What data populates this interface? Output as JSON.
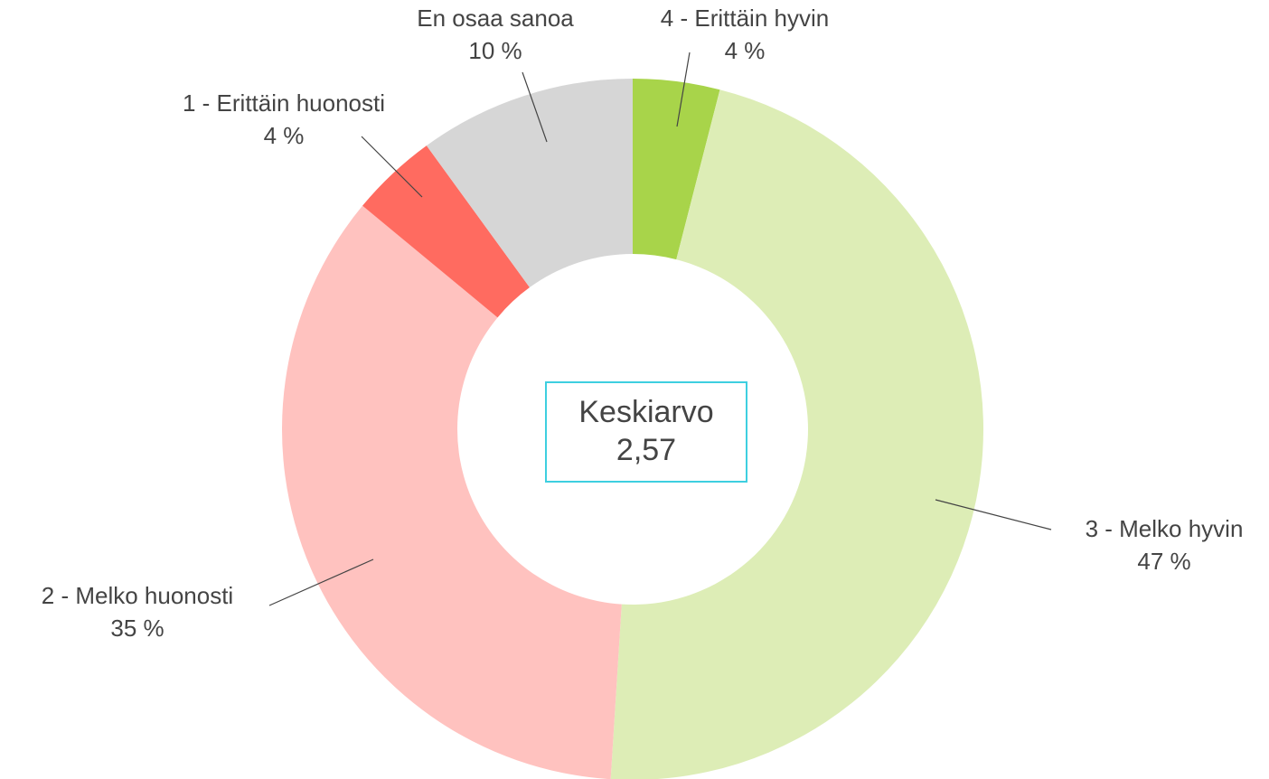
{
  "chart_data": {
    "type": "donut",
    "categories": [
      "4 - Erittäin hyvin",
      "3 - Melko hyvin",
      "2 - Melko huonosti",
      "1 - Erittäin huonosti",
      "En osaa sanoa"
    ],
    "values": [
      4,
      47,
      35,
      4,
      10
    ],
    "value_labels": [
      "4 %",
      "47 %",
      "35 %",
      "4 %",
      "10 %"
    ],
    "colors": [
      "#a8d44a",
      "#ddedb6",
      "#ffc2bf",
      "#ff6b60",
      "#d6d6d6"
    ],
    "center_title": "Keskiarvo",
    "center_value": "2,57"
  }
}
